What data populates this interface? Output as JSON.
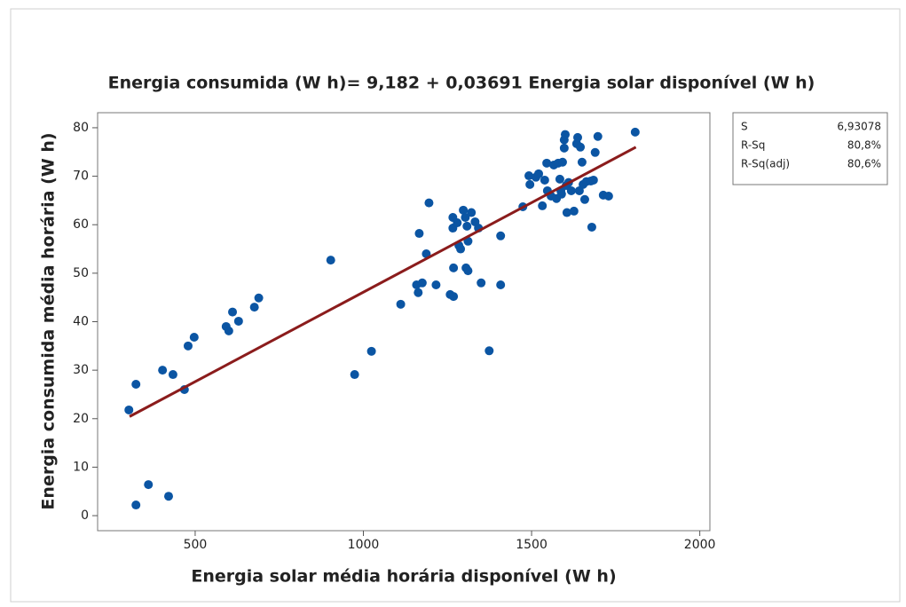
{
  "chart_data": {
    "type": "scatter",
    "title": "Energia consumida (W h)= 9,182 + 0,03691 Energia solar disponível (W h)",
    "x_label": "Energia solar média horária disponível (W h)",
    "y_label": "Energia consumida média horária (W h)",
    "xlim": [
      210,
      2030
    ],
    "ylim": [
      -3.1,
      83.1
    ],
    "xticks": [
      500,
      1000,
      1500,
      2000
    ],
    "yticks": [
      0,
      10,
      20,
      30,
      40,
      50,
      60,
      70,
      80
    ],
    "color": "#0b55a3",
    "x": [
      303,
      324,
      324,
      361,
      403,
      434,
      421,
      468,
      479,
      497,
      592,
      600,
      611,
      629,
      676,
      689,
      903,
      974,
      1024,
      1111,
      1158,
      1166,
      1175,
      1163,
      1187,
      1195,
      1216,
      1258,
      1266,
      1266,
      1268,
      1268,
      1279,
      1284,
      1289,
      1297,
      1303,
      1308,
      1311,
      1305,
      1311,
      1321,
      1332,
      1342,
      1350,
      1374,
      1408,
      1408,
      1474,
      1492,
      1495,
      1513,
      1521,
      1532,
      1539,
      1545,
      1547,
      1558,
      1566,
      1574,
      1579,
      1584,
      1587,
      1589,
      1592,
      1597,
      1597,
      1600,
      1603,
      1605,
      1610,
      1618,
      1626,
      1634,
      1637,
      1642,
      1645,
      1650,
      1653,
      1658,
      1663,
      1676,
      1679,
      1684,
      1689,
      1697,
      1713,
      1729,
      1808
    ],
    "y": [
      21.8,
      27.1,
      2.2,
      6.4,
      30,
      29.1,
      4,
      26,
      35,
      36.8,
      39,
      38.1,
      42,
      40.1,
      43,
      44.9,
      52.7,
      29.1,
      33.9,
      43.6,
      47.6,
      58.2,
      48,
      46,
      54,
      64.5,
      47.6,
      45.6,
      61.5,
      59.3,
      51.1,
      45.2,
      60.4,
      55.7,
      55,
      63,
      61.5,
      59.7,
      56.6,
      51.1,
      50.5,
      62.5,
      60.6,
      59.3,
      48,
      34,
      57.7,
      47.6,
      63.7,
      70.1,
      68.3,
      69.8,
      70.5,
      63.9,
      69.2,
      72.7,
      67,
      65.9,
      72.3,
      65.4,
      72.7,
      69.4,
      67,
      66.3,
      72.9,
      77.5,
      75.8,
      78.6,
      68.1,
      62.5,
      68.7,
      67,
      62.8,
      76.7,
      78,
      67,
      76,
      72.9,
      68.3,
      65.2,
      68.9,
      69,
      59.5,
      69.2,
      74.9,
      78.2,
      66.1,
      65.9,
      79.1
    ],
    "fit": {
      "intercept": 9.182,
      "slope": 0.03691,
      "x": [
        305,
        1810
      ],
      "color": "#8b1c1c"
    },
    "stats": [
      {
        "label": "S",
        "value": "6,93078"
      },
      {
        "label": "R-Sq",
        "value": "80,8%"
      },
      {
        "label": "R-Sq(adj)",
        "value": "80,6%"
      }
    ]
  }
}
